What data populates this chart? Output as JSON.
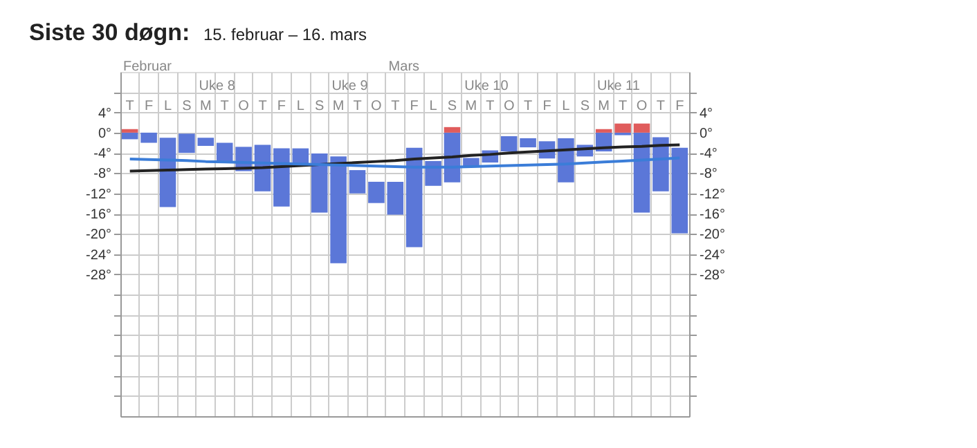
{
  "chart_data": {
    "type": "bar",
    "title": "Siste 30 døgn:",
    "subtitle": "15. februar – 16. mars",
    "annotations": [
      "Februar",
      "Mars",
      "Uke 8",
      "Uke 9",
      "Uke 10",
      "Uke 11"
    ],
    "categories": [
      "T",
      "F",
      "L",
      "S",
      "M",
      "T",
      "O",
      "T",
      "F",
      "L",
      "S",
      "M",
      "T",
      "O",
      "T",
      "F",
      "L",
      "S",
      "M",
      "T",
      "O",
      "T",
      "F",
      "L",
      "S",
      "M",
      "T",
      "O",
      "T",
      "F"
    ],
    "series": [
      {
        "color": "#5b77d8",
        "base": [
          -1.3,
          -2,
          -14.7,
          -4,
          -2.6,
          -6,
          -7.6,
          -11.6,
          -14.6,
          -6.2,
          -15.8,
          -25.8,
          -12,
          -13.9,
          -16.2,
          -22.6,
          -10.5,
          -9.8,
          -6.6,
          -5.9,
          -3.7,
          -2.9,
          -5.1,
          -9.8,
          -4.7,
          -3.7,
          -0.5,
          -15.8,
          -11.6,
          -19.9
        ],
        "values": [
          1.3,
          2,
          13.7,
          3.8,
          1.6,
          4,
          4.8,
          9.2,
          11.5,
          3.1,
          11.7,
          21.1,
          4.6,
          4.2,
          6.5,
          19.6,
          4.9,
          9.8,
          1.6,
          2.4,
          3,
          1.8,
          3.4,
          8.7,
          2.3,
          3.7,
          0.5,
          15.8,
          10.7,
          16.9
        ]
      },
      {
        "color": "#e05c5c",
        "base": [
          0,
          null,
          null,
          null,
          null,
          null,
          null,
          null,
          null,
          null,
          null,
          null,
          null,
          null,
          null,
          null,
          null,
          0,
          null,
          null,
          null,
          null,
          null,
          null,
          null,
          0,
          0,
          0,
          null,
          null
        ],
        "values": [
          0.7,
          null,
          null,
          null,
          null,
          null,
          null,
          null,
          null,
          null,
          null,
          null,
          null,
          null,
          null,
          null,
          null,
          1.1,
          null,
          null,
          null,
          null,
          null,
          null,
          null,
          0.7,
          1.8,
          1.8,
          null,
          null
        ]
      },
      {
        "type": "line",
        "color": "#222222",
        "values": [
          -7.6,
          -7.5,
          -7.4,
          -7.3,
          -7.2,
          -7.1,
          -7,
          -6.9,
          -6.7,
          -6.5,
          -6.3,
          -6.1,
          -5.9,
          -5.7,
          -5.5,
          -5.2,
          -5,
          -4.8,
          -4.5,
          -4.3,
          -4,
          -3.8,
          -3.6,
          -3.4,
          -3.2,
          -3,
          -2.8,
          -2.7,
          -2.5,
          -2.4
        ]
      },
      {
        "type": "line",
        "color": "#3b7dd8",
        "values": [
          -5.2,
          -5.3,
          -5.4,
          -5.5,
          -5.7,
          -5.8,
          -5.9,
          -6,
          -6.1,
          -6.2,
          -6.3,
          -6.4,
          -6.5,
          -6.6,
          -6.7,
          -6.8,
          -6.8,
          -6.8,
          -6.7,
          -6.6,
          -6.5,
          -6.4,
          -6.3,
          -6.2,
          -6,
          -5.8,
          -5.6,
          -5.4,
          -5.2,
          -5
        ]
      }
    ],
    "ylim": [
      -56,
      12
    ],
    "yticks": [
      {
        "value": 8,
        "label": null
      },
      {
        "value": 4,
        "label": "4°"
      },
      {
        "value": 0,
        "label": "0°"
      },
      {
        "value": -4,
        "label": "-4°"
      },
      {
        "value": -8,
        "label": "-8°"
      },
      {
        "value": -12,
        "label": "-12°"
      },
      {
        "value": -16,
        "label": "-16°"
      },
      {
        "value": -20,
        "label": "-20°"
      },
      {
        "value": -24,
        "label": "-24°"
      },
      {
        "value": -28,
        "label": "-28°"
      },
      {
        "value": -32,
        "label": null
      },
      {
        "value": -36,
        "label": null
      },
      {
        "value": -40,
        "label": null
      },
      {
        "value": -44,
        "label": null
      },
      {
        "value": -48,
        "label": null
      },
      {
        "value": -52,
        "label": null
      }
    ],
    "y2lim": [
      -56,
      12
    ],
    "y2ticks": [
      {
        "value": 8,
        "label": null
      },
      {
        "value": 4,
        "label": "4°"
      },
      {
        "value": 0,
        "label": "0°"
      },
      {
        "value": -4,
        "label": "-4°"
      },
      {
        "value": -8,
        "label": "-8°"
      },
      {
        "value": -12,
        "label": "-12°"
      },
      {
        "value": -16,
        "label": "-16°"
      },
      {
        "value": -20,
        "label": "-20°"
      },
      {
        "value": -24,
        "label": "-24°"
      },
      {
        "value": -28,
        "label": "-28°"
      },
      {
        "value": -32,
        "label": null
      },
      {
        "value": -36,
        "label": null
      },
      {
        "value": -40,
        "label": null
      },
      {
        "value": -44,
        "label": null
      },
      {
        "value": -48,
        "label": null
      },
      {
        "value": -52,
        "label": null
      }
    ],
    "grid": true
  }
}
